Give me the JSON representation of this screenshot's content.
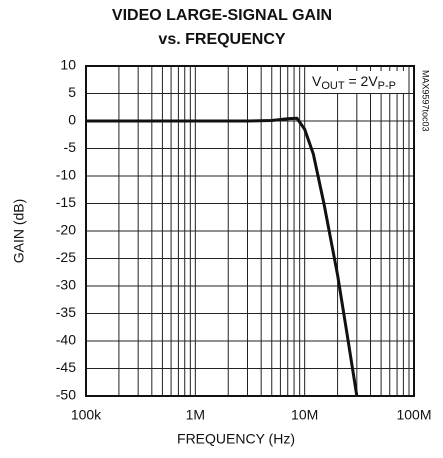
{
  "chart_data": {
    "type": "line",
    "title": [
      "VIDEO LARGE-SIGNAL GAIN",
      "vs. FREQUENCY"
    ],
    "xlabel": "FREQUENCY (Hz)",
    "ylabel": "GAIN (dB)",
    "annotation": [
      "V",
      "OUT",
      " = 2V",
      "P-P"
    ],
    "side_label": "MAX9597toc03",
    "x": [
      100000,
      1000000,
      3000000,
      5000000,
      7000000,
      8500000,
      10000000,
      12000000,
      15000000,
      20000000,
      25000000,
      30000000
    ],
    "series": [
      {
        "name": "GAIN",
        "color": "#111111",
        "values": [
          0,
          0,
          0,
          0.1,
          0.4,
          0.5,
          -1.5,
          -6,
          -15,
          -28,
          -40,
          -50
        ]
      }
    ],
    "xscale": "log",
    "xlim": [
      100000,
      100000000
    ],
    "xticks": [
      {
        "value": 100000,
        "label": "100k"
      },
      {
        "value": 1000000,
        "label": "1M"
      },
      {
        "value": 10000000,
        "label": "10M"
      },
      {
        "value": 100000000,
        "label": "100M"
      }
    ],
    "xminor_ticks": [
      200000,
      300000,
      400000,
      500000,
      600000,
      700000,
      800000,
      900000,
      2000000,
      3000000,
      4000000,
      5000000,
      6000000,
      7000000,
      8000000,
      9000000,
      20000000,
      30000000,
      40000000,
      50000000,
      60000000,
      70000000,
      80000000,
      90000000
    ],
    "ylim": [
      -50,
      10
    ],
    "yticks": [
      10,
      5,
      0,
      -5,
      -10,
      -15,
      -20,
      -25,
      -30,
      -35,
      -40,
      -45,
      -50
    ],
    "grid": true
  }
}
